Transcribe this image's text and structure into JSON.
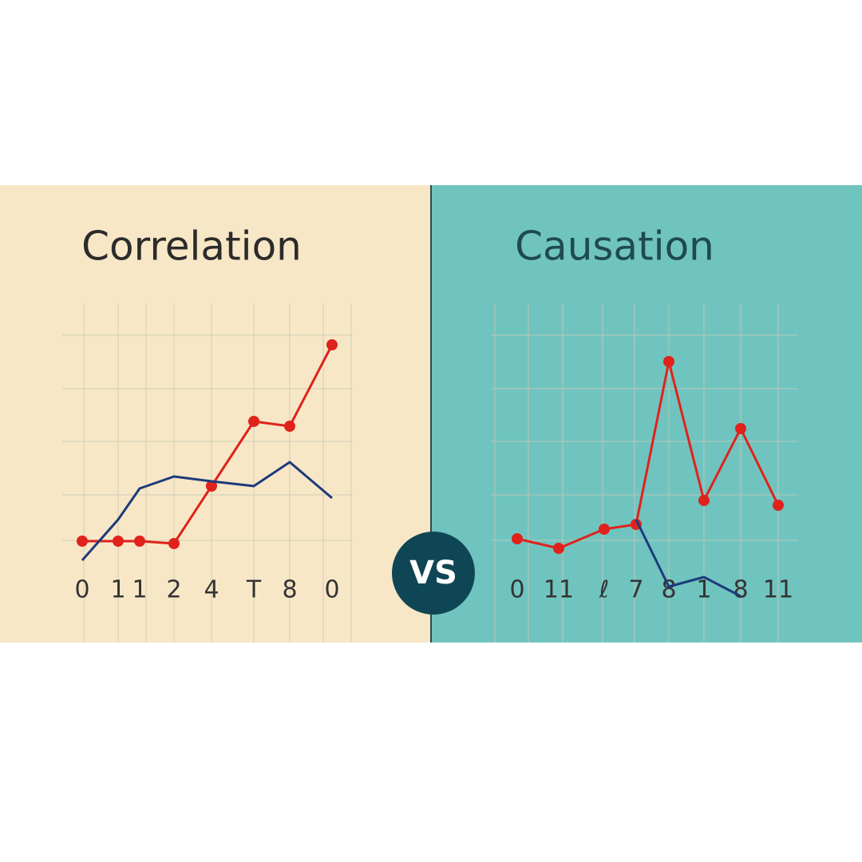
{
  "chart_data": [
    {
      "type": "line",
      "title": "Correlation",
      "categories": [
        "0",
        "1",
        "1",
        "2",
        "4",
        "T",
        "8",
        "0"
      ],
      "series": [
        {
          "color": "#e0221c",
          "values": [
            1.4,
            1.4,
            1.4,
            1.3,
            3.7,
            6.4,
            6.2,
            9.6
          ]
        },
        {
          "color": "#1d3a7a",
          "values": [
            0.6,
            2.3,
            3.6,
            4.1,
            3.9,
            3.7,
            4.7,
            3.2
          ]
        }
      ],
      "ylim": [
        -1,
        10
      ],
      "grid": true
    },
    {
      "type": "line",
      "title": "Causation",
      "categories": [
        "0",
        "11",
        "ℓ",
        "7",
        "8",
        "1",
        "8",
        "11"
      ],
      "series": [
        {
          "color": "#e0221c",
          "values": [
            1.5,
            1.1,
            1.9,
            2.1,
            8.9,
            3.1,
            6.1,
            2.9
          ]
        },
        {
          "color": "#1d3a7a",
          "values": [
            null,
            null,
            null,
            2.3,
            -0.5,
            -0.1,
            -0.9,
            null
          ]
        }
      ],
      "ylim": [
        -1,
        10
      ],
      "grid": true
    }
  ],
  "badge": "VS"
}
